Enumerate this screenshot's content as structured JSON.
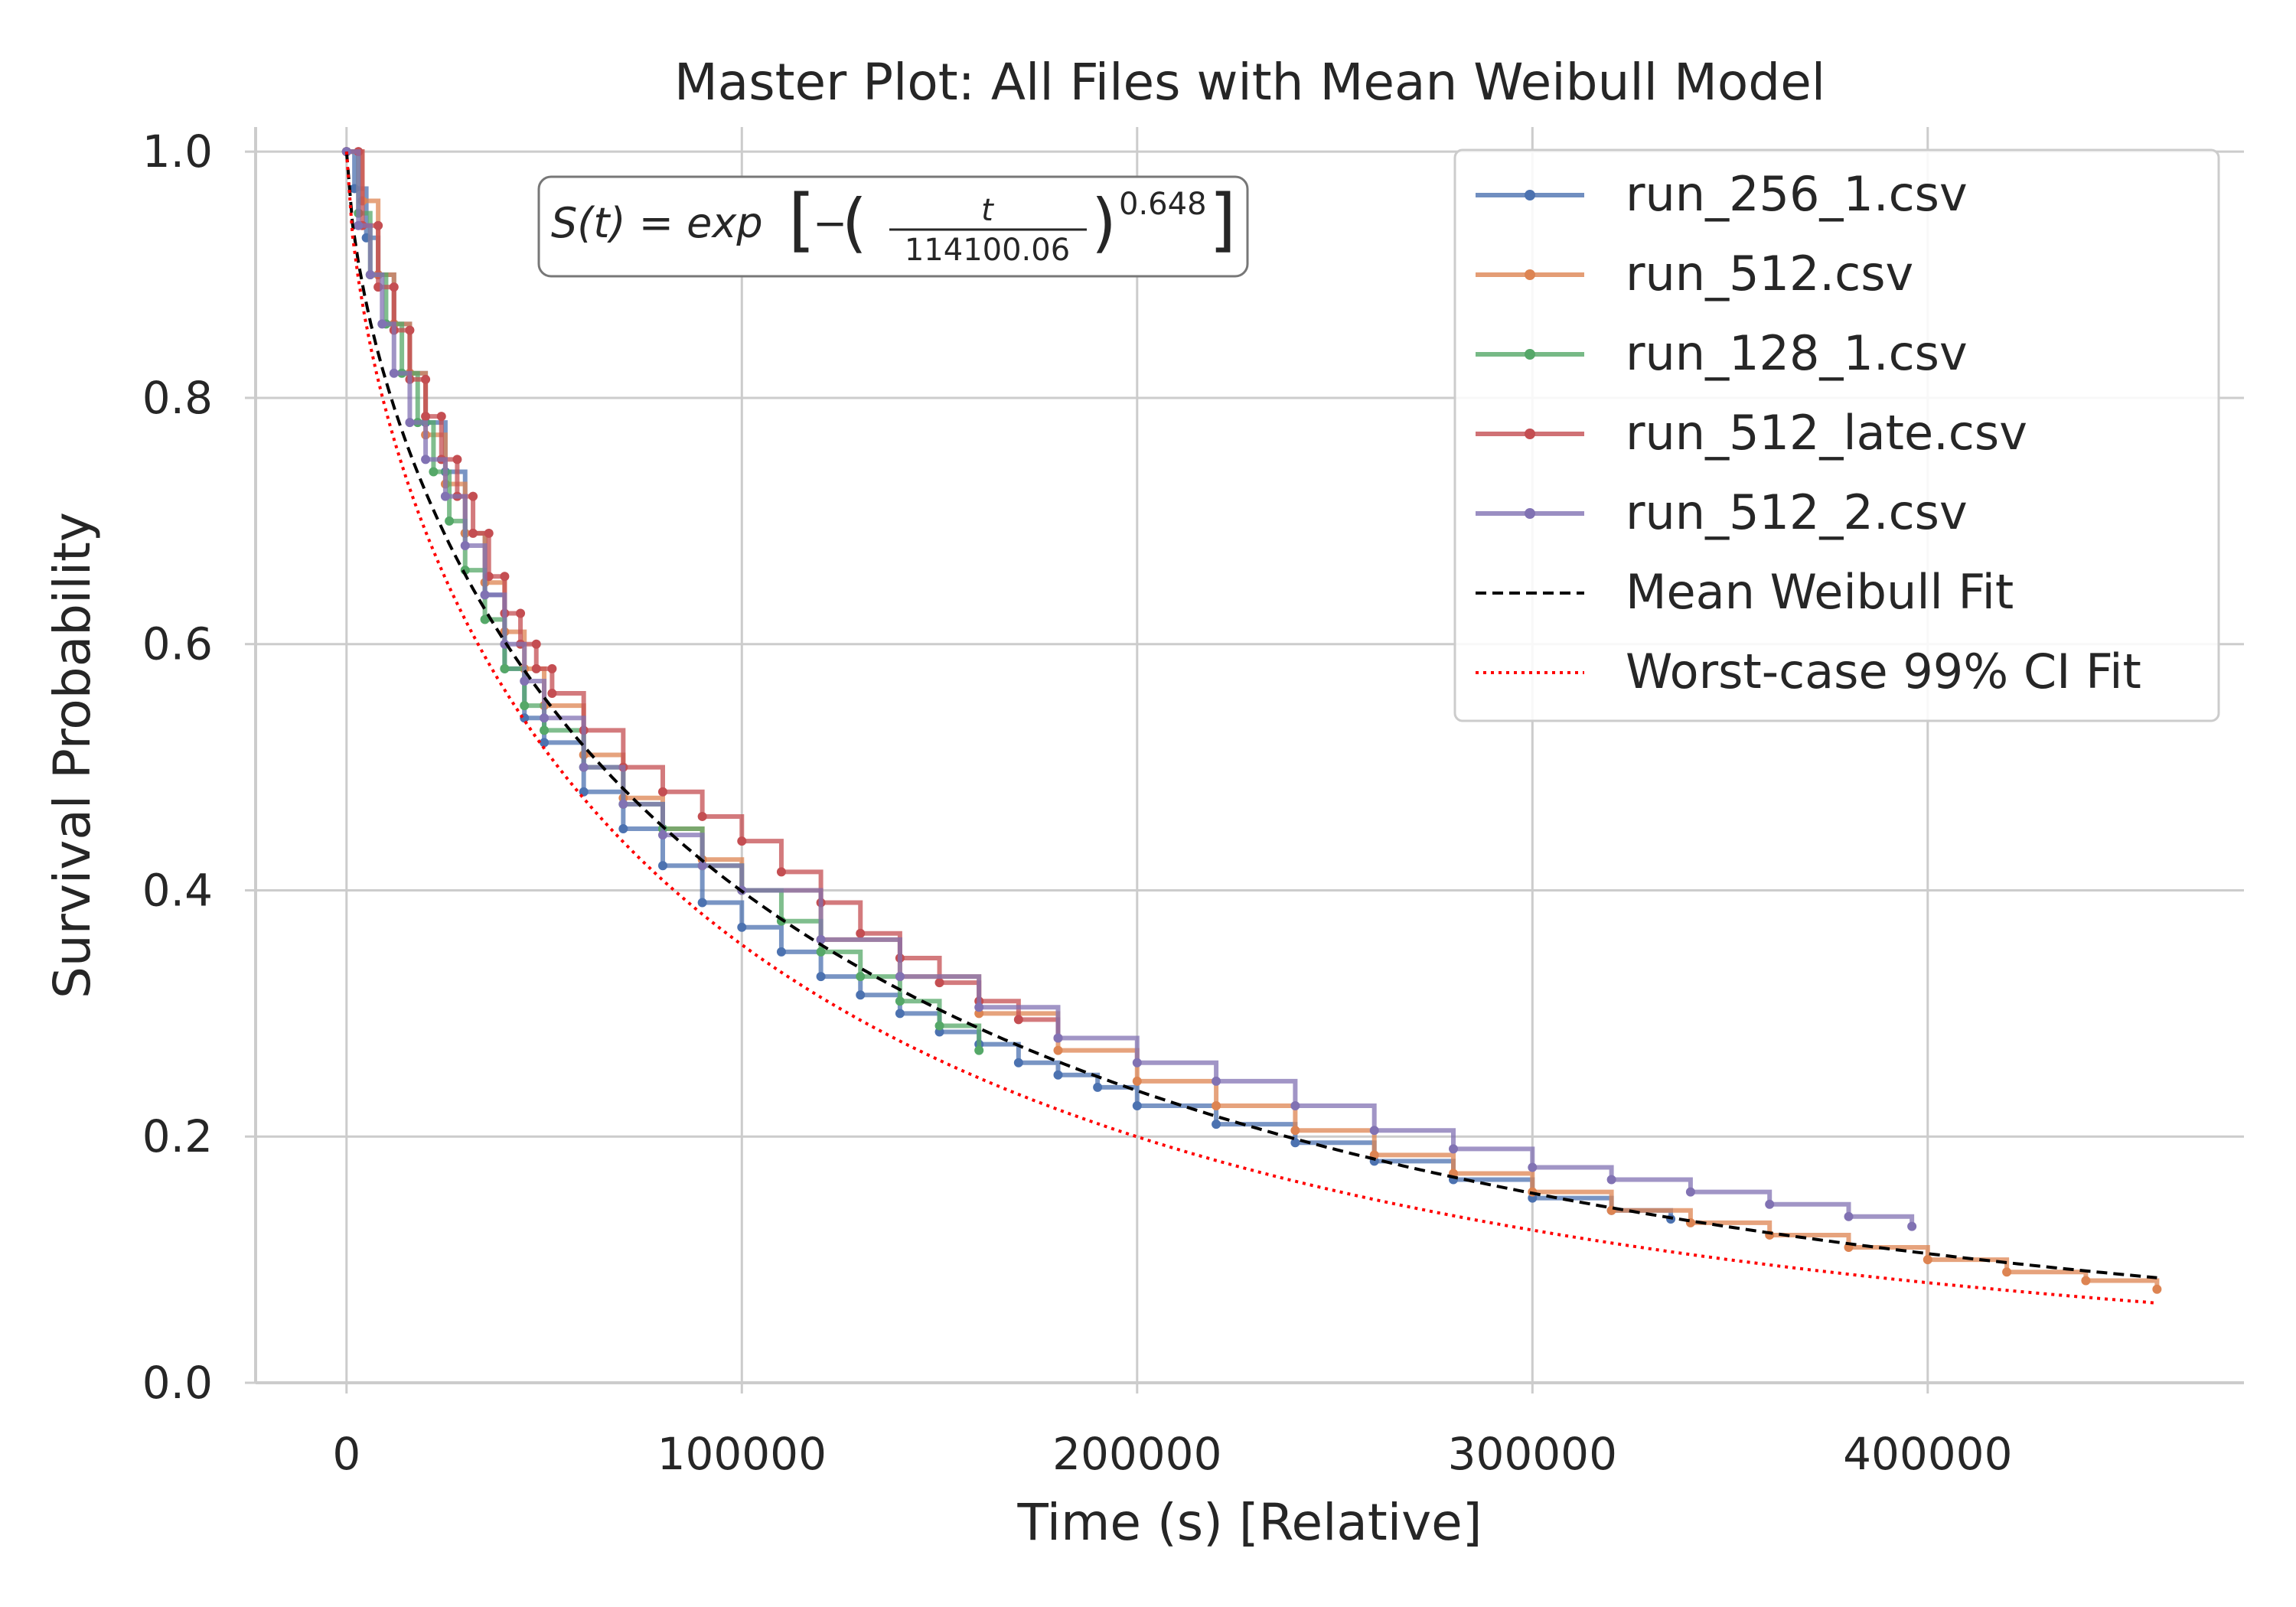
{
  "chart_data": {
    "type": "line",
    "title": "Master Plot: All Files with Mean Weibull Model",
    "xlabel": "Time (s) [Relative]",
    "ylabel": "Survival Probability",
    "xlim": [
      -23000,
      480000
    ],
    "ylim": [
      0.0,
      1.02
    ],
    "xticks": [
      0,
      100000,
      200000,
      300000,
      400000
    ],
    "yticks": [
      0.0,
      0.2,
      0.4,
      0.6,
      0.8,
      1.0
    ],
    "xtick_labels": [
      "0",
      "100000",
      "200000",
      "300000",
      "400000"
    ],
    "ytick_labels": [
      "0.0",
      "0.2",
      "0.4",
      "0.6",
      "0.8",
      "1.0"
    ],
    "grid": true,
    "legend_position": "top-right",
    "annotation": {
      "text_prefix": "S(t) = exp",
      "numerator": "t",
      "denominator": "114100.06",
      "exponent": "0.648"
    },
    "series": [
      {
        "name": "run_256_1.csv",
        "color": "#4c72b0",
        "style": "step-markers",
        "points": [
          [
            0,
            1.0
          ],
          [
            2000,
            0.97
          ],
          [
            5000,
            0.93
          ],
          [
            8000,
            0.9
          ],
          [
            12000,
            0.86
          ],
          [
            16000,
            0.82
          ],
          [
            20000,
            0.78
          ],
          [
            25000,
            0.74
          ],
          [
            30000,
            0.69
          ],
          [
            35000,
            0.64
          ],
          [
            40000,
            0.58
          ],
          [
            45000,
            0.54
          ],
          [
            50000,
            0.52
          ],
          [
            60000,
            0.48
          ],
          [
            70000,
            0.45
          ],
          [
            80000,
            0.42
          ],
          [
            90000,
            0.39
          ],
          [
            100000,
            0.37
          ],
          [
            110000,
            0.35
          ],
          [
            120000,
            0.33
          ],
          [
            130000,
            0.315
          ],
          [
            140000,
            0.3
          ],
          [
            150000,
            0.285
          ],
          [
            160000,
            0.275
          ],
          [
            170000,
            0.26
          ],
          [
            180000,
            0.25
          ],
          [
            190000,
            0.24
          ],
          [
            200000,
            0.225
          ],
          [
            220000,
            0.21
          ],
          [
            240000,
            0.195
          ],
          [
            260000,
            0.18
          ],
          [
            280000,
            0.165
          ],
          [
            300000,
            0.15
          ],
          [
            320000,
            0.14
          ],
          [
            335000,
            0.133
          ]
        ]
      },
      {
        "name": "run_512.csv",
        "color": "#dd8452",
        "style": "step-markers",
        "points": [
          [
            0,
            1.0
          ],
          [
            4000,
            0.96
          ],
          [
            8000,
            0.9
          ],
          [
            12000,
            0.86
          ],
          [
            16000,
            0.82
          ],
          [
            20000,
            0.77
          ],
          [
            25000,
            0.73
          ],
          [
            30000,
            0.69
          ],
          [
            35000,
            0.65
          ],
          [
            40000,
            0.61
          ],
          [
            45000,
            0.58
          ],
          [
            50000,
            0.55
          ],
          [
            60000,
            0.51
          ],
          [
            70000,
            0.475
          ],
          [
            80000,
            0.45
          ],
          [
            90000,
            0.425
          ],
          [
            100000,
            0.4
          ],
          [
            120000,
            0.36
          ],
          [
            140000,
            0.33
          ],
          [
            160000,
            0.3
          ],
          [
            180000,
            0.27
          ],
          [
            200000,
            0.245
          ],
          [
            220000,
            0.225
          ],
          [
            240000,
            0.205
          ],
          [
            260000,
            0.185
          ],
          [
            280000,
            0.17
          ],
          [
            300000,
            0.155
          ],
          [
            320000,
            0.14
          ],
          [
            340000,
            0.13
          ],
          [
            360000,
            0.12
          ],
          [
            380000,
            0.11
          ],
          [
            400000,
            0.1
          ],
          [
            420000,
            0.09
          ],
          [
            440000,
            0.083
          ],
          [
            458000,
            0.076
          ]
        ]
      },
      {
        "name": "run_128_1.csv",
        "color": "#55a868",
        "style": "step-markers",
        "points": [
          [
            0,
            1.0
          ],
          [
            3000,
            0.95
          ],
          [
            6000,
            0.9
          ],
          [
            10000,
            0.86
          ],
          [
            14000,
            0.82
          ],
          [
            18000,
            0.78
          ],
          [
            22000,
            0.74
          ],
          [
            26000,
            0.7
          ],
          [
            30000,
            0.66
          ],
          [
            35000,
            0.62
          ],
          [
            40000,
            0.58
          ],
          [
            45000,
            0.55
          ],
          [
            50000,
            0.53
          ],
          [
            60000,
            0.5
          ],
          [
            70000,
            0.47
          ],
          [
            80000,
            0.45
          ],
          [
            90000,
            0.42
          ],
          [
            100000,
            0.4
          ],
          [
            110000,
            0.375
          ],
          [
            120000,
            0.35
          ],
          [
            130000,
            0.33
          ],
          [
            140000,
            0.31
          ],
          [
            150000,
            0.29
          ],
          [
            160000,
            0.27
          ]
        ]
      },
      {
        "name": "run_512_late.csv",
        "color": "#c44e52",
        "style": "step-markers",
        "points": [
          [
            0,
            1.0
          ],
          [
            3000,
            1.0
          ],
          [
            4000,
            0.94
          ],
          [
            8000,
            0.94
          ],
          [
            8000,
            0.89
          ],
          [
            12000,
            0.89
          ],
          [
            12000,
            0.855
          ],
          [
            16000,
            0.855
          ],
          [
            16000,
            0.815
          ],
          [
            20000,
            0.815
          ],
          [
            20000,
            0.785
          ],
          [
            24000,
            0.785
          ],
          [
            24000,
            0.75
          ],
          [
            28000,
            0.75
          ],
          [
            28000,
            0.72
          ],
          [
            32000,
            0.72
          ],
          [
            32000,
            0.69
          ],
          [
            36000,
            0.69
          ],
          [
            36000,
            0.655
          ],
          [
            40000,
            0.655
          ],
          [
            40000,
            0.625
          ],
          [
            44000,
            0.625
          ],
          [
            44000,
            0.6
          ],
          [
            48000,
            0.6
          ],
          [
            48000,
            0.58
          ],
          [
            52000,
            0.58
          ],
          [
            52000,
            0.56
          ],
          [
            60000,
            0.53
          ],
          [
            70000,
            0.5
          ],
          [
            80000,
            0.48
          ],
          [
            90000,
            0.46
          ],
          [
            100000,
            0.44
          ],
          [
            110000,
            0.415
          ],
          [
            120000,
            0.39
          ],
          [
            130000,
            0.365
          ],
          [
            140000,
            0.345
          ],
          [
            150000,
            0.325
          ],
          [
            160000,
            0.31
          ],
          [
            170000,
            0.295
          ],
          [
            180000,
            0.28
          ]
        ]
      },
      {
        "name": "run_512_2.csv",
        "color": "#8172b3",
        "style": "step-markers",
        "points": [
          [
            0,
            1.0
          ],
          [
            3000,
            0.94
          ],
          [
            6000,
            0.9
          ],
          [
            9000,
            0.86
          ],
          [
            12000,
            0.82
          ],
          [
            16000,
            0.78
          ],
          [
            20000,
            0.75
          ],
          [
            25000,
            0.72
          ],
          [
            30000,
            0.68
          ],
          [
            35000,
            0.64
          ],
          [
            40000,
            0.6
          ],
          [
            45000,
            0.57
          ],
          [
            50000,
            0.54
          ],
          [
            60000,
            0.5
          ],
          [
            70000,
            0.47
          ],
          [
            80000,
            0.445
          ],
          [
            90000,
            0.42
          ],
          [
            100000,
            0.4
          ],
          [
            120000,
            0.36
          ],
          [
            140000,
            0.33
          ],
          [
            160000,
            0.305
          ],
          [
            180000,
            0.28
          ],
          [
            200000,
            0.26
          ],
          [
            220000,
            0.245
          ],
          [
            240000,
            0.225
          ],
          [
            260000,
            0.205
          ],
          [
            280000,
            0.19
          ],
          [
            300000,
            0.175
          ],
          [
            320000,
            0.165
          ],
          [
            340000,
            0.155
          ],
          [
            360000,
            0.145
          ],
          [
            380000,
            0.135
          ],
          [
            396000,
            0.127
          ]
        ]
      },
      {
        "name": "Mean Weibull Fit",
        "color": "#000000",
        "style": "dashed",
        "model": {
          "scale": 114100.06,
          "shape": 0.648,
          "x_range": [
            0,
            458000
          ]
        }
      },
      {
        "name": "Worst-case 99% CI Fit",
        "color": "#ff0000",
        "style": "dotted",
        "model": {
          "scale": 95000,
          "shape": 0.64,
          "x_range": [
            0,
            458000
          ]
        }
      }
    ]
  }
}
